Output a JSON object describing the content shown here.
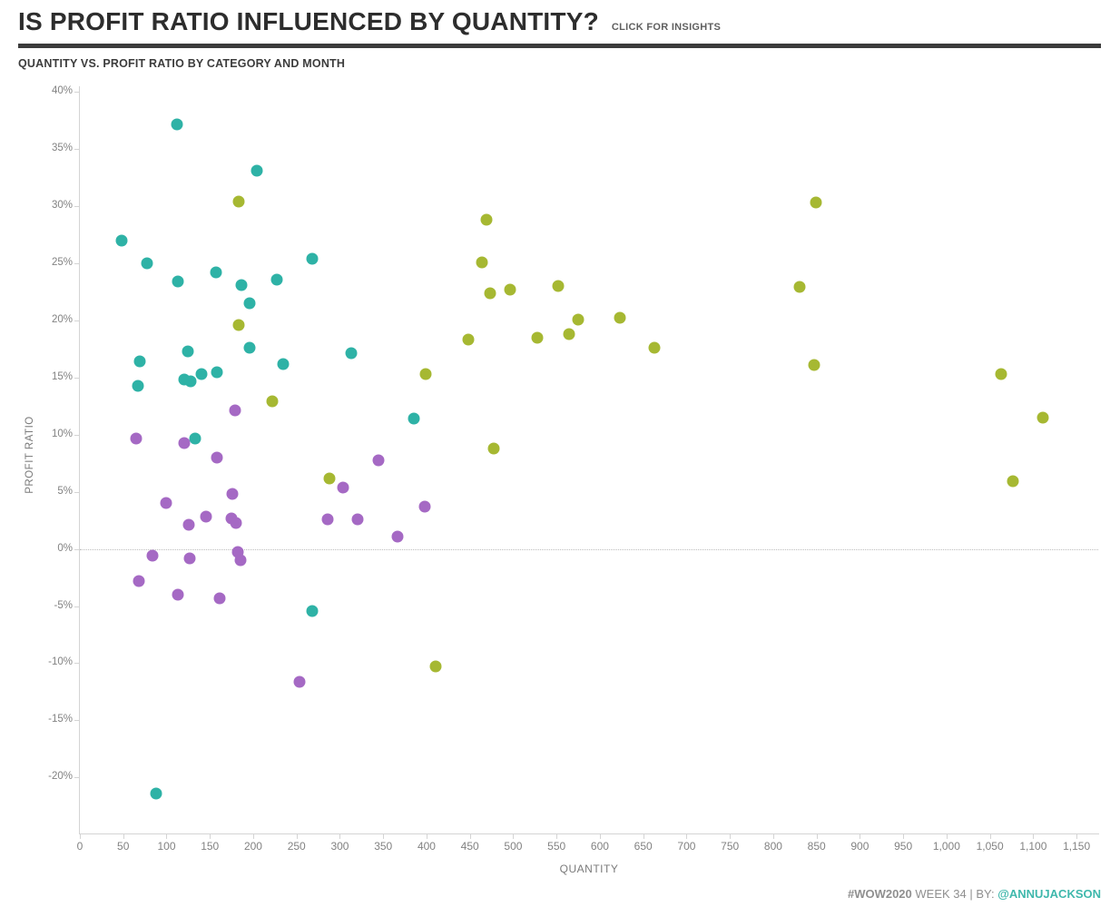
{
  "header": {
    "title": "IS PROFIT RATIO INFLUENCED BY QUANTITY?",
    "insights_link": "CLICK FOR INSIGHTS",
    "section_title": "QUANTITY VS. PROFIT RATIO BY CATEGORY AND MONTH"
  },
  "footer": {
    "hashtag": "#WOW2020",
    "middle": " WEEK 34 | BY: ",
    "author": "@ANNUJACKSON"
  },
  "colors": {
    "teal": "#2eb2a6",
    "olive": "#a6b832",
    "purple": "#a569c4",
    "divider": "#3b3b3b",
    "footer_accent": "#3fb8ac"
  },
  "chart_data": {
    "type": "scatter",
    "title": "QUANTITY VS. PROFIT RATIO BY CATEGORY AND MONTH",
    "xlabel": "QUANTITY",
    "ylabel": "PROFIT RATIO",
    "xlim": [
      0,
      1175
    ],
    "ylim": [
      -24.9,
      40.5
    ],
    "grid": false,
    "legend": "none",
    "zero_reference_line": 0,
    "x_tick_values": [
      0,
      50,
      100,
      150,
      200,
      250,
      300,
      350,
      400,
      450,
      500,
      550,
      600,
      650,
      700,
      750,
      800,
      850,
      900,
      950,
      1000,
      1050,
      1100,
      1150
    ],
    "x_tick_labels": [
      "0",
      "50",
      "100",
      "150",
      "200",
      "250",
      "300",
      "350",
      "400",
      "450",
      "500",
      "550",
      "600",
      "650",
      "700",
      "750",
      "800",
      "850",
      "900",
      "950",
      "1,000",
      "1,050",
      "1,100",
      "1,150"
    ],
    "y_tick_values": [
      40,
      35,
      30,
      25,
      20,
      15,
      10,
      5,
      0,
      -5,
      -10,
      -15,
      -20
    ],
    "y_tick_labels": [
      "40%",
      "35%",
      "30%",
      "25%",
      "20%",
      "15%",
      "10%",
      "5%",
      "0%",
      "-5%",
      "-10%",
      "-15%",
      "-20%"
    ],
    "series": [
      {
        "name": "teal-category",
        "color": "#2eb2a6",
        "points": [
          [
            48,
            27.0
          ],
          [
            77,
            25.0
          ],
          [
            112,
            37.2
          ],
          [
            113,
            23.4
          ],
          [
            157,
            24.2
          ],
          [
            186,
            23.1
          ],
          [
            204,
            33.1
          ],
          [
            227,
            23.6
          ],
          [
            268,
            25.4
          ],
          [
            196,
            21.5
          ],
          [
            196,
            17.6
          ],
          [
            125,
            17.3
          ],
          [
            67,
            14.3
          ],
          [
            69,
            16.4
          ],
          [
            120,
            14.8
          ],
          [
            128,
            14.7
          ],
          [
            140,
            15.3
          ],
          [
            158,
            15.5
          ],
          [
            235,
            16.2
          ],
          [
            313,
            17.1
          ],
          [
            133,
            9.7
          ],
          [
            385,
            11.4
          ],
          [
            268,
            -5.4
          ],
          [
            88,
            -21.4
          ]
        ]
      },
      {
        "name": "olive-category",
        "color": "#a6b832",
        "points": [
          [
            183,
            30.4
          ],
          [
            183,
            19.6
          ],
          [
            222,
            12.9
          ],
          [
            288,
            6.2
          ],
          [
            469,
            28.8
          ],
          [
            464,
            25.1
          ],
          [
            473,
            22.4
          ],
          [
            496,
            22.7
          ],
          [
            552,
            23.0
          ],
          [
            575,
            20.1
          ],
          [
            623,
            20.2
          ],
          [
            564,
            18.8
          ],
          [
            528,
            18.5
          ],
          [
            448,
            18.3
          ],
          [
            663,
            17.6
          ],
          [
            399,
            15.3
          ],
          [
            478,
            8.8
          ],
          [
            411,
            -10.3
          ],
          [
            849,
            30.3
          ],
          [
            830,
            22.9
          ],
          [
            847,
            16.1
          ],
          [
            1063,
            15.3
          ],
          [
            1111,
            11.5
          ],
          [
            1077,
            5.9
          ]
        ]
      },
      {
        "name": "purple-category",
        "color": "#a569c4",
        "points": [
          [
            65,
            9.7
          ],
          [
            120,
            9.3
          ],
          [
            179,
            12.1
          ],
          [
            158,
            8.0
          ],
          [
            176,
            4.8
          ],
          [
            99,
            4.0
          ],
          [
            146,
            2.8
          ],
          [
            126,
            2.1
          ],
          [
            175,
            2.7
          ],
          [
            180,
            2.3
          ],
          [
            84,
            -0.6
          ],
          [
            127,
            -0.8
          ],
          [
            182,
            -0.3
          ],
          [
            185,
            -1.0
          ],
          [
            68,
            -2.8
          ],
          [
            113,
            -4.0
          ],
          [
            161,
            -4.3
          ],
          [
            253,
            -11.6
          ],
          [
            345,
            7.8
          ],
          [
            304,
            5.4
          ],
          [
            286,
            2.6
          ],
          [
            320,
            2.6
          ],
          [
            367,
            1.1
          ],
          [
            398,
            3.7
          ]
        ]
      }
    ]
  }
}
